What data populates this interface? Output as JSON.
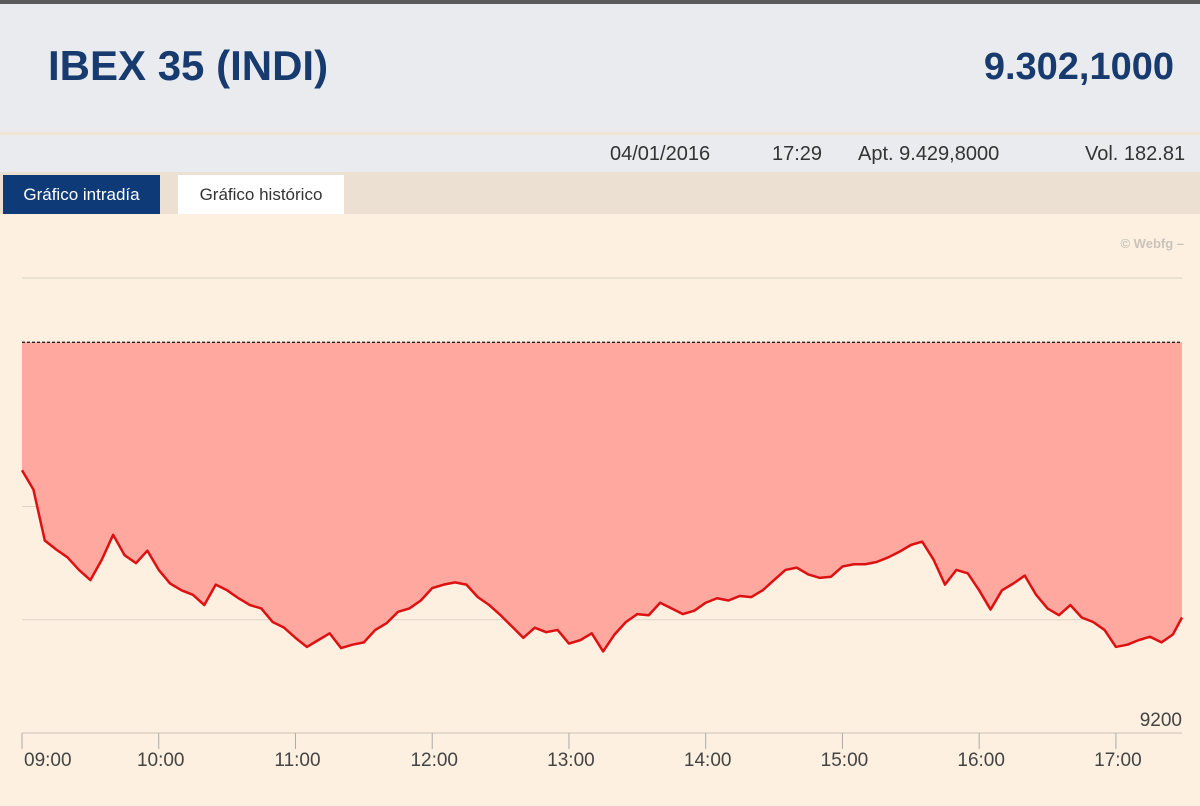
{
  "header": {
    "title": "IBEX 35 (INDI)",
    "price": "9.302,1000"
  },
  "info": {
    "date": "04/01/2016",
    "time": "17:29",
    "open": "Apt. 9.429,8000",
    "volume": "Vol. 182.81"
  },
  "tabs": [
    "Gráfico intradía",
    "Gráfico histórico"
  ],
  "watermark": "© Webfg –",
  "chart_data": {
    "type": "line",
    "x": [
      "09:00",
      "09:05",
      "09:10",
      "09:15",
      "09:20",
      "09:25",
      "09:30",
      "09:35",
      "09:40",
      "09:45",
      "09:50",
      "09:55",
      "10:00",
      "10:05",
      "10:10",
      "10:15",
      "10:20",
      "10:25",
      "10:30",
      "10:35",
      "10:40",
      "10:45",
      "10:50",
      "10:55",
      "11:00",
      "11:05",
      "11:10",
      "11:15",
      "11:20",
      "11:25",
      "11:30",
      "11:35",
      "11:40",
      "11:45",
      "11:50",
      "11:55",
      "12:00",
      "12:05",
      "12:10",
      "12:15",
      "12:20",
      "12:25",
      "12:30",
      "12:35",
      "12:40",
      "12:45",
      "12:50",
      "12:55",
      "13:00",
      "13:05",
      "13:10",
      "13:15",
      "13:20",
      "13:25",
      "13:30",
      "13:35",
      "13:40",
      "13:45",
      "13:50",
      "13:55",
      "14:00",
      "14:05",
      "14:10",
      "14:15",
      "14:20",
      "14:25",
      "14:30",
      "14:35",
      "14:40",
      "14:45",
      "14:50",
      "14:55",
      "15:00",
      "15:05",
      "15:10",
      "15:15",
      "15:20",
      "15:25",
      "15:30",
      "15:35",
      "15:40",
      "15:45",
      "15:50",
      "15:55",
      "16:00",
      "16:05",
      "16:10",
      "16:15",
      "16:20",
      "16:25",
      "16:30",
      "16:35",
      "16:40",
      "16:45",
      "16:50",
      "16:55",
      "17:00",
      "17:05",
      "17:10",
      "17:15",
      "17:20",
      "17:25",
      "17:29"
    ],
    "values": [
      9432,
      9415,
      9370,
      9362,
      9355,
      9344,
      9335,
      9353,
      9375,
      9357,
      9350,
      9361,
      9344,
      9332,
      9326,
      9322,
      9313,
      9331,
      9326,
      9319,
      9313,
      9310,
      9298,
      9293,
      9284,
      9276,
      9282,
      9288,
      9275,
      9278,
      9280,
      9291,
      9297,
      9307,
      9310,
      9317,
      9328,
      9331,
      9333,
      9331,
      9320,
      9313,
      9304,
      9294,
      9284,
      9293,
      9289,
      9291,
      9279,
      9282,
      9288,
      9272,
      9287,
      9298,
      9305,
      9304,
      9315,
      9310,
      9305,
      9308,
      9315,
      9319,
      9317,
      9321,
      9320,
      9326,
      9335,
      9344,
      9346,
      9340,
      9337,
      9338,
      9347,
      9349,
      9349,
      9351,
      9355,
      9360,
      9366,
      9369,
      9353,
      9331,
      9344,
      9341,
      9326,
      9309,
      9326,
      9332,
      9339,
      9322,
      9310,
      9304,
      9313,
      9302,
      9298,
      9291,
      9276,
      9278,
      9282,
      9285,
      9280,
      9287,
      9302
    ],
    "color": "#dd1111",
    "fill_color": "#ffa8a0",
    "reference": 9545,
    "xlim": [
      "09:00",
      "17:29"
    ],
    "xticks": [
      "09:00",
      "10:00",
      "11:00",
      "12:00",
      "13:00",
      "14:00",
      "15:00",
      "16:00",
      "17:00"
    ],
    "ylim": [
      9200,
      9600
    ],
    "yticks": [
      9200,
      9300,
      9400,
      9500
    ],
    "grid": true
  }
}
